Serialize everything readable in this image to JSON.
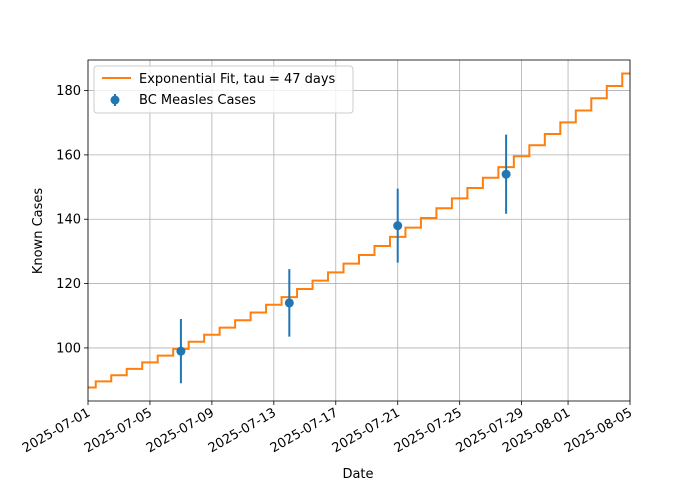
{
  "chart_data": {
    "type": "scatter",
    "xlabel": "Date",
    "ylabel": "Known Cases",
    "x_type": "date",
    "xlim": [
      "2025-07-01",
      "2025-08-05"
    ],
    "ylim": [
      83.5,
      189.5
    ],
    "x_ticks": [
      "2025-07-01",
      "2025-07-05",
      "2025-07-09",
      "2025-07-13",
      "2025-07-17",
      "2025-07-21",
      "2025-07-25",
      "2025-07-29",
      "2025-08-01",
      "2025-08-05"
    ],
    "y_ticks": [
      100,
      120,
      140,
      160,
      180
    ],
    "grid": true,
    "legend_position": "top-left",
    "series": [
      {
        "name": "Exponential Fit, tau = 47 days",
        "kind": "step-line",
        "color": "#ff7f0e",
        "x": [
          "2025-07-01",
          "2025-07-02",
          "2025-07-03",
          "2025-07-04",
          "2025-07-05",
          "2025-07-06",
          "2025-07-07",
          "2025-07-08",
          "2025-07-09",
          "2025-07-10",
          "2025-07-11",
          "2025-07-12",
          "2025-07-13",
          "2025-07-14",
          "2025-07-15",
          "2025-07-16",
          "2025-07-17",
          "2025-07-18",
          "2025-07-19",
          "2025-07-20",
          "2025-07-21",
          "2025-07-22",
          "2025-07-23",
          "2025-07-24",
          "2025-07-25",
          "2025-07-26",
          "2025-07-27",
          "2025-07-28",
          "2025-07-29",
          "2025-07-30",
          "2025-07-31",
          "2025-08-01",
          "2025-08-02",
          "2025-08-03",
          "2025-08-04",
          "2025-08-05"
        ],
        "y": [
          87.7,
          89.6,
          91.5,
          93.5,
          95.5,
          97.6,
          99.7,
          101.9,
          104.1,
          106.3,
          108.6,
          111.0,
          113.4,
          115.8,
          118.3,
          120.9,
          123.5,
          126.2,
          128.9,
          131.7,
          134.5,
          137.4,
          140.4,
          143.4,
          146.5,
          149.7,
          152.9,
          156.2,
          159.6,
          163.0,
          166.5,
          170.1,
          173.8,
          177.6,
          181.4,
          185.3
        ]
      },
      {
        "name": "BC Measles Cases",
        "kind": "errorbar",
        "color": "#1f77b4",
        "x": [
          "2025-07-07",
          "2025-07-14",
          "2025-07-21",
          "2025-07-28"
        ],
        "y": [
          99,
          114,
          138,
          154
        ],
        "yerr": [
          10,
          10.5,
          11.5,
          12.3
        ]
      }
    ]
  }
}
